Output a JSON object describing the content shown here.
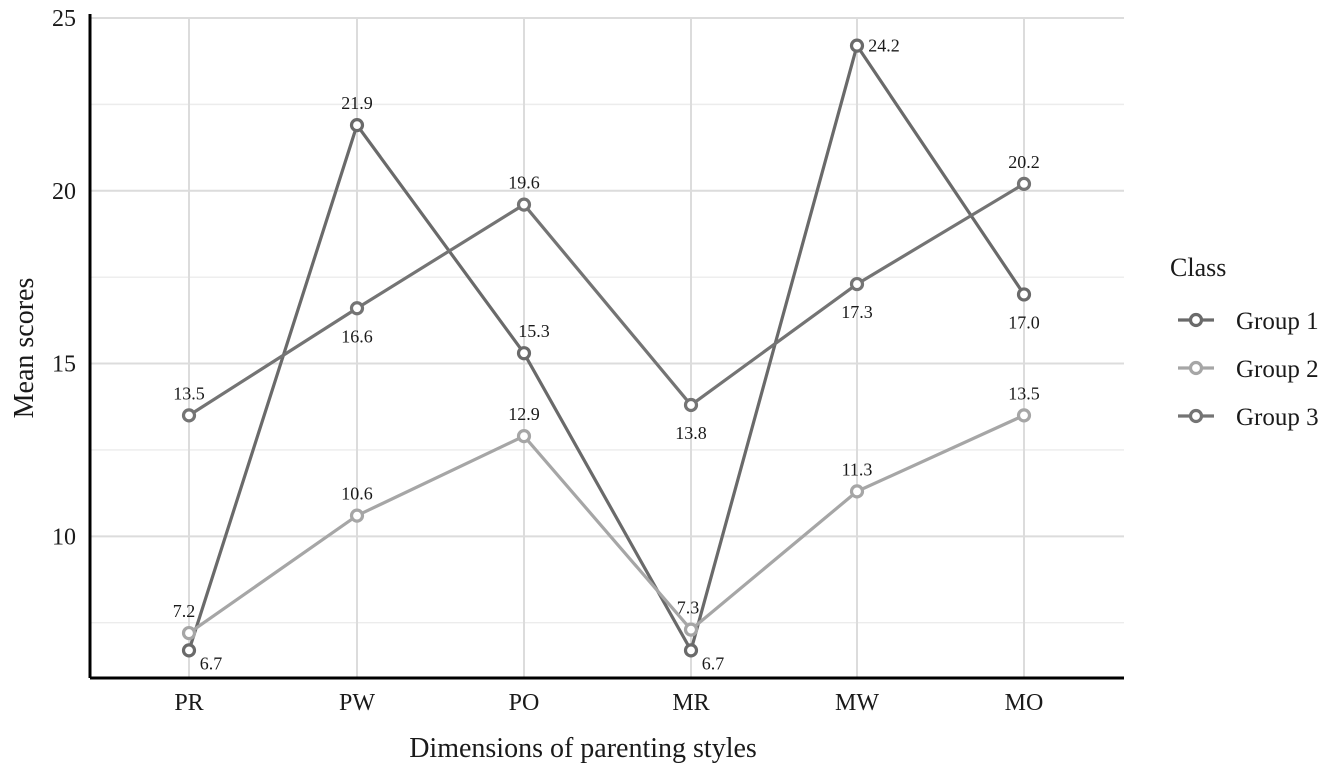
{
  "chart_data": {
    "type": "line",
    "xlabel": "Dimensions of parenting styles",
    "ylabel": "Mean scores",
    "categories": [
      "PR",
      "PW",
      "PO",
      "MR",
      "MW",
      "MO"
    ],
    "y_ticks": [
      10,
      15,
      20,
      25
    ],
    "ylim": [
      5.9,
      25
    ],
    "grid": true,
    "legend": {
      "title": "Class",
      "position": "right"
    },
    "series": [
      {
        "name": "Group 1",
        "color": "#6a6a6a",
        "values": [
          6.7,
          21.9,
          15.3,
          6.7,
          24.2,
          17.0
        ]
      },
      {
        "name": "Group 2",
        "color": "#a6a6a6",
        "values": [
          7.2,
          10.6,
          12.9,
          7.3,
          11.3,
          13.5
        ]
      },
      {
        "name": "Group 3",
        "color": "#747474",
        "values": [
          13.5,
          16.6,
          19.6,
          13.8,
          17.3,
          20.2
        ]
      }
    ],
    "data_labels": [
      [
        "6.7",
        "21.9",
        "15.3",
        "6.7",
        "24.2",
        "17.0"
      ],
      [
        "7.2",
        "10.6",
        "12.9",
        "7.3",
        "11.3",
        "13.5"
      ],
      [
        "13.5",
        "16.6",
        "19.6",
        "13.8",
        "17.3",
        "20.2"
      ]
    ]
  }
}
